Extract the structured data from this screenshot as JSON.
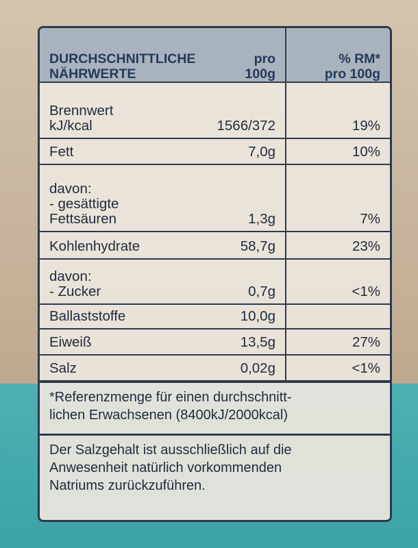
{
  "header": {
    "col1": "DURCHSCHNITTLICHE\nNÄHRWERTE",
    "col2": "pro\n100g",
    "col3": "% RM*\npro 100g"
  },
  "rows": [
    {
      "name": "Brennwert\nkJ/kcal",
      "value": "1566/372",
      "rm": "19%"
    },
    {
      "name": "Fett",
      "value": "7,0g",
      "rm": "10%"
    },
    {
      "name": "davon:\n- gesättigte\nFettsäuren",
      "value": "1,3g",
      "rm": "7%"
    },
    {
      "name": "Kohlenhydrate",
      "value": "58,7g",
      "rm": "23%"
    },
    {
      "name": "davon:\n- Zucker",
      "value": "0,7g",
      "rm": "<1%"
    },
    {
      "name": "Ballaststoffe",
      "value": "10,0g",
      "rm": ""
    },
    {
      "name": "Eiweiß",
      "value": "13,5g",
      "rm": "27%"
    },
    {
      "name": "Salz",
      "value": "0,02g",
      "rm": "<1%"
    }
  ],
  "footnote": "*Referenzmenge für einen durchschnitt-\nlichen Erwachsenen (8400kJ/2000kcal)",
  "salt_note": "Der Salzgehalt ist ausschließlich auf die\nAnwesenheit natürlich vorkommenden\nNatriums zurückzuführen."
}
